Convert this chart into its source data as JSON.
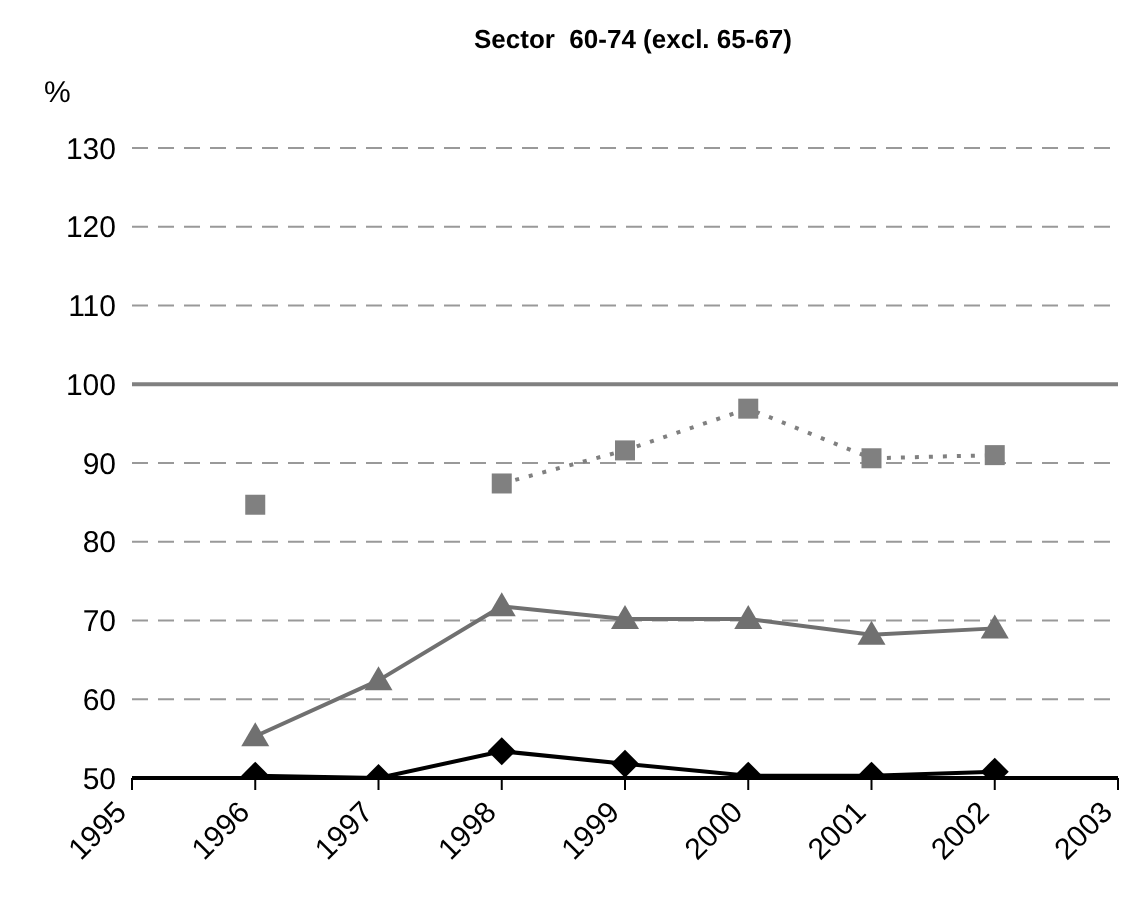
{
  "chart_data": {
    "type": "line",
    "title": "Sector  60-74 (excl. 65-67)",
    "ylabel": "%",
    "categories": [
      "1995",
      "1996",
      "1997",
      "1998",
      "1999",
      "2000",
      "2001",
      "2002",
      "2003"
    ],
    "series": [
      {
        "color": "#808080",
        "marker": "square",
        "line_style": "dotted",
        "values": [
          null,
          84.7,
          null,
          87.4,
          91.6,
          96.9,
          90.6,
          91,
          null
        ]
      },
      {
        "color": "#707070",
        "marker": "triangle",
        "line_style": "solid",
        "values": [
          null,
          55.3,
          62.4,
          71.8,
          70.2,
          70.2,
          68.2,
          69,
          null
        ]
      },
      {
        "color": "#000000",
        "marker": "diamond",
        "line_style": "solid",
        "values": [
          null,
          50.3,
          50,
          53.4,
          51.8,
          50.3,
          50.3,
          50.8,
          null
        ]
      }
    ],
    "ylim": [
      50,
      130
    ],
    "yticks": [
      50,
      60,
      70,
      80,
      90,
      100,
      110,
      120,
      130
    ],
    "grid": "y",
    "ref_lines": [
      {
        "axis": "y",
        "value": 100,
        "color": "#808080",
        "line_style": "solid"
      }
    ]
  }
}
